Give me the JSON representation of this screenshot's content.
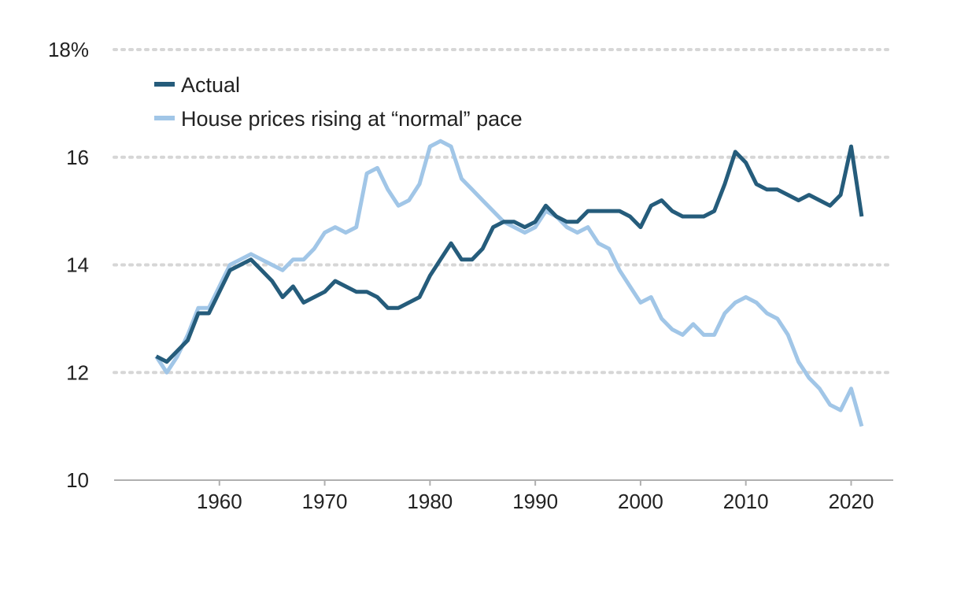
{
  "chart_data": {
    "type": "line",
    "title": "",
    "xlabel": "",
    "ylabel": "",
    "xlim": [
      1950,
      2024
    ],
    "ylim": [
      10,
      18
    ],
    "x_ticks": [
      {
        "value": 1960,
        "label": "1960"
      },
      {
        "value": 1970,
        "label": "1970"
      },
      {
        "value": 1980,
        "label": "1980"
      },
      {
        "value": 1990,
        "label": "1990"
      },
      {
        "value": 2000,
        "label": "2000"
      },
      {
        "value": 2010,
        "label": "2010"
      },
      {
        "value": 2020,
        "label": "2020"
      }
    ],
    "y_ticks": [
      {
        "value": 10,
        "label": "10"
      },
      {
        "value": 12,
        "label": "12"
      },
      {
        "value": 14,
        "label": "14"
      },
      {
        "value": 16,
        "label": "16"
      },
      {
        "value": 18,
        "label": "18%"
      }
    ],
    "grid": "horizontal dotted",
    "legend_position": "top-left",
    "x": [
      1954,
      1955,
      1956,
      1957,
      1958,
      1959,
      1960,
      1961,
      1962,
      1963,
      1964,
      1965,
      1966,
      1967,
      1968,
      1969,
      1970,
      1971,
      1972,
      1973,
      1974,
      1975,
      1976,
      1977,
      1978,
      1979,
      1980,
      1981,
      1982,
      1983,
      1984,
      1985,
      1986,
      1987,
      1988,
      1989,
      1990,
      1991,
      1992,
      1993,
      1994,
      1995,
      1996,
      1997,
      1998,
      1999,
      2000,
      2001,
      2002,
      2003,
      2004,
      2005,
      2006,
      2007,
      2008,
      2009,
      2010,
      2011,
      2012,
      2013,
      2014,
      2015,
      2016,
      2017,
      2018,
      2019,
      2020,
      2021
    ],
    "series": [
      {
        "name": "Actual",
        "color": "#255c7b",
        "values": [
          12.3,
          12.2,
          12.4,
          12.6,
          13.1,
          13.1,
          13.5,
          13.9,
          14.0,
          14.1,
          13.9,
          13.7,
          13.4,
          13.6,
          13.3,
          13.4,
          13.5,
          13.7,
          13.6,
          13.5,
          13.5,
          13.4,
          13.2,
          13.2,
          13.3,
          13.4,
          13.8,
          14.1,
          14.4,
          14.1,
          14.1,
          14.3,
          14.7,
          14.8,
          14.8,
          14.7,
          14.8,
          15.1,
          14.9,
          14.8,
          14.8,
          15.0,
          15.0,
          15.0,
          15.0,
          14.9,
          14.7,
          15.1,
          15.2,
          15.0,
          14.9,
          14.9,
          14.9,
          15.0,
          15.5,
          16.1,
          15.9,
          15.5,
          15.4,
          15.4,
          15.3,
          15.2,
          15.3,
          15.2,
          15.1,
          15.3,
          16.2,
          14.9
        ]
      },
      {
        "name": "House prices rising at “normal” pace",
        "color": "#a1c6e7",
        "values": [
          12.3,
          12.0,
          12.3,
          12.7,
          13.2,
          13.2,
          13.6,
          14.0,
          14.1,
          14.2,
          14.1,
          14.0,
          13.9,
          14.1,
          14.1,
          14.3,
          14.6,
          14.7,
          14.6,
          14.7,
          15.7,
          15.8,
          15.4,
          15.1,
          15.2,
          15.5,
          16.2,
          16.3,
          16.2,
          15.6,
          15.4,
          15.2,
          15.0,
          14.8,
          14.7,
          14.6,
          14.7,
          15.0,
          14.9,
          14.7,
          14.6,
          14.7,
          14.4,
          14.3,
          13.9,
          13.6,
          13.3,
          13.4,
          13.0,
          12.8,
          12.7,
          12.9,
          12.7,
          12.7,
          13.1,
          13.3,
          13.4,
          13.3,
          13.1,
          13.0,
          12.7,
          12.2,
          11.9,
          11.7,
          11.4,
          11.3,
          11.7,
          11.0
        ]
      }
    ]
  }
}
